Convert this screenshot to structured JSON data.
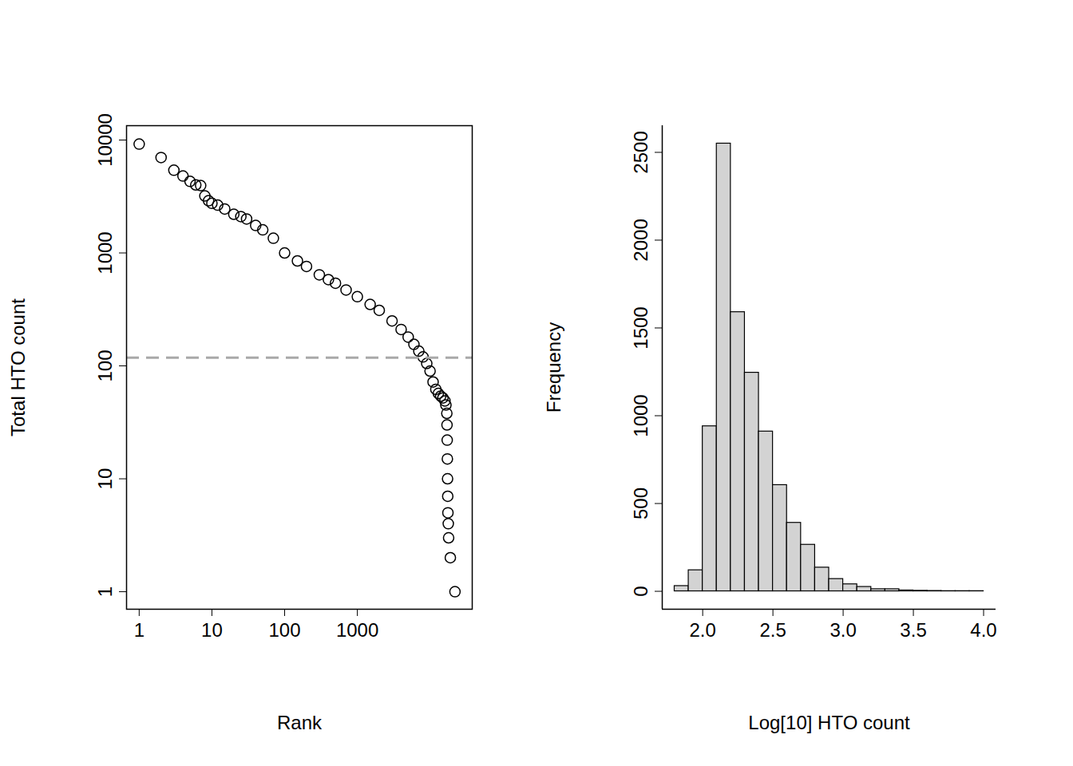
{
  "chart_data": [
    {
      "type": "scatter",
      "x_label": "Rank",
      "y_label": "Total HTO count",
      "log": true,
      "xlim": [
        0.67,
        38000
      ],
      "ylim": [
        0.7,
        13400
      ],
      "xticks": [
        1,
        10,
        100,
        1000
      ],
      "yticks": [
        1,
        10,
        100,
        1000,
        10000
      ],
      "series": [
        {
          "type": "scatter",
          "marker": "open_circle",
          "color": "#000000",
          "x": [
            1,
            2,
            3,
            4,
            5,
            6,
            7,
            8,
            9,
            10,
            12,
            15,
            20,
            25,
            30,
            40,
            50,
            70,
            100,
            150,
            200,
            300,
            400,
            500,
            700,
            1000,
            1500,
            2000,
            3000,
            4000,
            5000,
            6000,
            7000,
            8000,
            9000,
            10000,
            11000,
            12000,
            13000,
            14000,
            15000,
            16000,
            16500,
            17000,
            17100,
            17200,
            17300,
            17400,
            17500,
            17600,
            17800,
            18000,
            19000,
            22000
          ],
          "values": [
            9200,
            7000,
            5400,
            4800,
            4300,
            4000,
            3950,
            3200,
            2900,
            2750,
            2650,
            2450,
            2200,
            2100,
            2000,
            1750,
            1600,
            1350,
            1000,
            850,
            760,
            640,
            580,
            540,
            470,
            410,
            350,
            310,
            250,
            210,
            180,
            155,
            135,
            120,
            105,
            90,
            72,
            62,
            57,
            54,
            52,
            49,
            45,
            38,
            30,
            22,
            15,
            10,
            7,
            5,
            4,
            3,
            2,
            1
          ]
        },
        {
          "type": "hline",
          "line_style": "dashed",
          "color": "#a9a9a9",
          "values": [
            118
          ]
        }
      ]
    },
    {
      "type": "histogram",
      "x_label": "Log[10] HTO count",
      "y_label": "Frequency",
      "color": "#d3d3d3",
      "xlim": [
        1.712,
        4.088
      ],
      "ylim": [
        -102,
        2652
      ],
      "xticks": [
        {
          "value": 2,
          "label": "2.0"
        },
        {
          "value": 2.5,
          "label": "2.5"
        },
        {
          "value": 3,
          "label": "3.0"
        },
        {
          "value": 3.5,
          "label": "3.5"
        },
        {
          "value": 4,
          "label": "4.0"
        }
      ],
      "yticks": [
        0,
        500,
        1000,
        1500,
        2000,
        2500
      ],
      "bins": [
        1.8,
        1.9,
        2.0,
        2.1,
        2.2,
        2.3,
        2.4,
        2.5,
        2.6,
        2.7,
        2.8,
        2.9,
        3.0,
        3.1,
        3.2,
        3.3,
        3.4,
        3.5,
        3.6,
        3.7,
        3.8,
        3.9,
        4.0
      ],
      "values": [
        30,
        120,
        940,
        2550,
        1590,
        1245,
        910,
        605,
        390,
        265,
        135,
        70,
        40,
        25,
        12,
        12,
        5,
        3,
        2,
        1,
        1,
        1
      ]
    }
  ]
}
